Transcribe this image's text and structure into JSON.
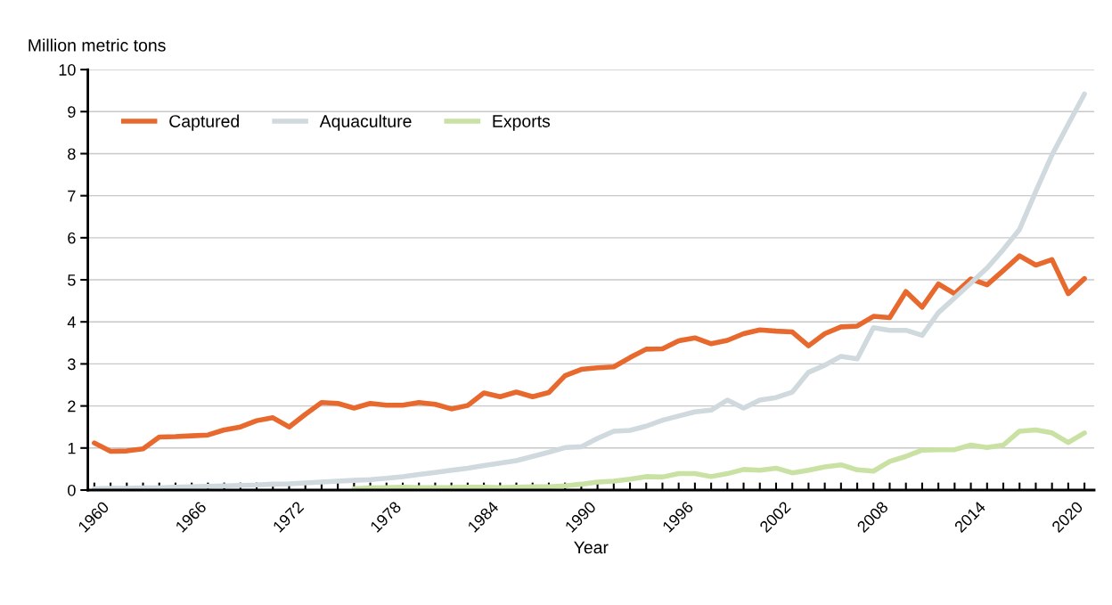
{
  "chart_data": {
    "type": "line",
    "xlabel": "Year",
    "ylabel": "Million metric tons",
    "xlim": [
      1959.6,
      2021.6
    ],
    "ylim": [
      0,
      10
    ],
    "yticks": [
      0,
      1,
      2,
      3,
      4,
      5,
      6,
      7,
      8,
      9,
      10
    ],
    "xticks": [
      1960,
      {
        "value": 1961,
        "label": null
      },
      {
        "value": 1962,
        "label": null
      },
      {
        "value": 1963,
        "label": null
      },
      {
        "value": 1964,
        "label": null
      },
      {
        "value": 1965,
        "label": null
      },
      1966,
      {
        "value": 1967,
        "label": null
      },
      {
        "value": 1968,
        "label": null
      },
      {
        "value": 1969,
        "label": null
      },
      {
        "value": 1970,
        "label": null
      },
      {
        "value": 1971,
        "label": null
      },
      1972,
      {
        "value": 1973,
        "label": null
      },
      {
        "value": 1974,
        "label": null
      },
      {
        "value": 1975,
        "label": null
      },
      {
        "value": 1976,
        "label": null
      },
      {
        "value": 1977,
        "label": null
      },
      1978,
      {
        "value": 1979,
        "label": null
      },
      {
        "value": 1980,
        "label": null
      },
      {
        "value": 1981,
        "label": null
      },
      {
        "value": 1982,
        "label": null
      },
      {
        "value": 1983,
        "label": null
      },
      1984,
      {
        "value": 1985,
        "label": null
      },
      {
        "value": 1986,
        "label": null
      },
      {
        "value": 1987,
        "label": null
      },
      {
        "value": 1988,
        "label": null
      },
      {
        "value": 1989,
        "label": null
      },
      1990,
      {
        "value": 1991,
        "label": null
      },
      {
        "value": 1992,
        "label": null
      },
      {
        "value": 1993,
        "label": null
      },
      {
        "value": 1994,
        "label": null
      },
      {
        "value": 1995,
        "label": null
      },
      1996,
      {
        "value": 1997,
        "label": null
      },
      {
        "value": 1998,
        "label": null
      },
      {
        "value": 1999,
        "label": null
      },
      {
        "value": 2000,
        "label": null
      },
      {
        "value": 2001,
        "label": null
      },
      2002,
      {
        "value": 2003,
        "label": null
      },
      {
        "value": 2004,
        "label": null
      },
      {
        "value": 2005,
        "label": null
      },
      {
        "value": 2006,
        "label": null
      },
      {
        "value": 2007,
        "label": null
      },
      2008,
      {
        "value": 2009,
        "label": null
      },
      {
        "value": 2010,
        "label": null
      },
      {
        "value": 2011,
        "label": null
      },
      {
        "value": 2012,
        "label": null
      },
      {
        "value": 2013,
        "label": null
      },
      2014,
      {
        "value": 2015,
        "label": null
      },
      {
        "value": 2016,
        "label": null
      },
      {
        "value": 2017,
        "label": null
      },
      {
        "value": 2018,
        "label": null
      },
      {
        "value": 2019,
        "label": null
      },
      2020,
      {
        "value": 2021,
        "label": null
      }
    ],
    "grid": "y",
    "legend": "top left",
    "marker": "none",
    "line_style": "solid",
    "series": [
      {
        "name": "Captured",
        "color": "#e8692e",
        "x": [
          1960,
          1961,
          1962,
          1963,
          1964,
          1965,
          1966,
          1967,
          1968,
          1969,
          1970,
          1971,
          1972,
          1973,
          1974,
          1975,
          1976,
          1977,
          1978,
          1979,
          1980,
          1981,
          1982,
          1983,
          1984,
          1985,
          1986,
          1987,
          1988,
          1989,
          1990,
          1991,
          1992,
          1993,
          1994,
          1995,
          1996,
          1997,
          1998,
          1999,
          2000,
          2001,
          2002,
          2003,
          2004,
          2005,
          2006,
          2007,
          2008,
          2009,
          2010,
          2011,
          2012,
          2013,
          2014,
          2015,
          2016,
          2017,
          2018,
          2019,
          2020,
          2021
        ],
        "values": [
          1.12,
          0.92,
          0.93,
          0.98,
          1.26,
          1.27,
          1.29,
          1.31,
          1.43,
          1.5,
          1.65,
          1.72,
          1.5,
          1.8,
          2.08,
          2.06,
          1.95,
          2.06,
          2.02,
          2.02,
          2.08,
          2.04,
          1.93,
          2.01,
          2.31,
          2.22,
          2.33,
          2.22,
          2.32,
          2.72,
          2.87,
          2.91,
          2.93,
          3.15,
          3.35,
          3.36,
          3.55,
          3.62,
          3.48,
          3.56,
          3.72,
          3.81,
          3.78,
          3.76,
          3.43,
          3.72,
          3.88,
          3.9,
          4.13,
          4.1,
          4.72,
          4.35,
          4.9,
          4.67,
          5.02,
          4.88,
          5.22,
          5.57,
          5.35,
          5.48,
          4.67,
          5.03
        ]
      },
      {
        "name": "Aquaculture",
        "color": "#cfd9de",
        "x": [
          1960,
          1961,
          1962,
          1963,
          1964,
          1965,
          1966,
          1967,
          1968,
          1969,
          1970,
          1971,
          1972,
          1973,
          1974,
          1975,
          1976,
          1977,
          1978,
          1979,
          1980,
          1981,
          1982,
          1983,
          1984,
          1985,
          1986,
          1987,
          1988,
          1989,
          1990,
          1991,
          1992,
          1993,
          1994,
          1995,
          1996,
          1997,
          1998,
          1999,
          2000,
          2001,
          2002,
          2003,
          2004,
          2005,
          2006,
          2007,
          2008,
          2009,
          2010,
          2011,
          2012,
          2013,
          2014,
          2015,
          2016,
          2017,
          2018,
          2019,
          2020,
          2021
        ],
        "values": [
          0.03,
          0.04,
          0.04,
          0.05,
          0.05,
          0.07,
          0.08,
          0.09,
          0.1,
          0.11,
          0.12,
          0.14,
          0.15,
          0.17,
          0.19,
          0.21,
          0.23,
          0.25,
          0.28,
          0.32,
          0.37,
          0.42,
          0.47,
          0.52,
          0.58,
          0.64,
          0.7,
          0.8,
          0.9,
          1.01,
          1.03,
          1.23,
          1.4,
          1.42,
          1.52,
          1.66,
          1.76,
          1.86,
          1.9,
          2.14,
          1.95,
          2.14,
          2.2,
          2.33,
          2.8,
          2.97,
          3.18,
          3.12,
          3.86,
          3.8,
          3.8,
          3.68,
          4.22,
          4.57,
          4.92,
          5.28,
          5.72,
          6.2,
          7.1,
          7.97,
          8.7,
          9.42
        ]
      },
      {
        "name": "Exports",
        "color": "#c9e2a4",
        "x": [
          1976,
          1977,
          1978,
          1979,
          1980,
          1981,
          1982,
          1983,
          1984,
          1985,
          1986,
          1987,
          1988,
          1989,
          1990,
          1991,
          1992,
          1993,
          1994,
          1995,
          1996,
          1997,
          1998,
          1999,
          2000,
          2001,
          2002,
          2003,
          2004,
          2005,
          2006,
          2007,
          2008,
          2009,
          2010,
          2011,
          2012,
          2013,
          2014,
          2015,
          2016,
          2017,
          2018,
          2019,
          2020,
          2021
        ],
        "values": [
          0.03,
          0.05,
          0.06,
          0.07,
          0.06,
          0.06,
          0.06,
          0.07,
          0.07,
          0.06,
          0.07,
          0.08,
          0.08,
          0.1,
          0.14,
          0.19,
          0.21,
          0.26,
          0.32,
          0.31,
          0.39,
          0.39,
          0.32,
          0.39,
          0.49,
          0.47,
          0.52,
          0.41,
          0.47,
          0.55,
          0.6,
          0.48,
          0.45,
          0.68,
          0.8,
          0.95,
          0.96,
          0.96,
          1.07,
          1.01,
          1.07,
          1.4,
          1.43,
          1.36,
          1.13,
          1.36
        ]
      }
    ]
  }
}
